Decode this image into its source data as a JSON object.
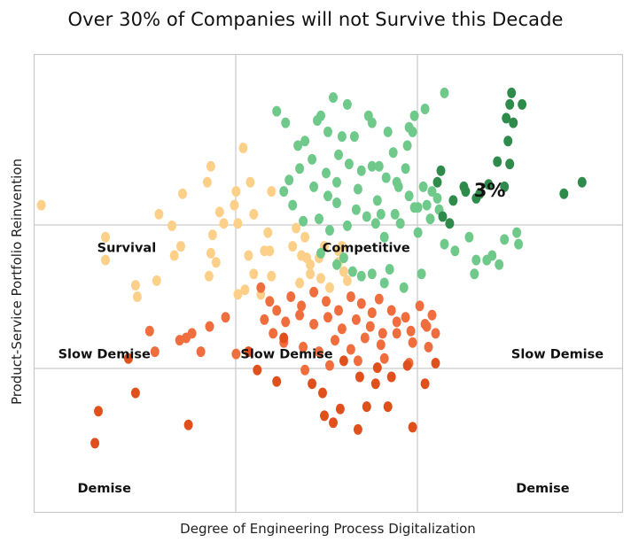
{
  "chart_data": {
    "type": "scatter",
    "title": "Over 30% of Companies will not Survive this Decade",
    "xlabel": "Degree of Engineering Process Digitalization",
    "ylabel": "Product-Service Portfolio Reinvention",
    "xlim": [
      0,
      100
    ],
    "ylim": [
      0,
      100
    ],
    "grid": "quadrant lines only",
    "legend": "none",
    "colors": {
      "light_orange": "#fdd08a",
      "light_green": "#6fc98a",
      "dark_green": "#2e8b4c",
      "red_orange": "#f06e3e",
      "dark_red_orange": "#e0501c"
    },
    "annotations": [
      {
        "text": "Survival",
        "x": 15.8,
        "y": 57.5
      },
      {
        "text": "Competitive",
        "x": 56.5,
        "y": 57.5
      },
      {
        "text": "3%",
        "x": 77.5,
        "y": 70.0
      },
      {
        "text": "Slow Demise",
        "x": 12.0,
        "y": 34.3
      },
      {
        "text": "Slow Demise",
        "x": 43.0,
        "y": 34.3
      },
      {
        "text": "Slow Demise",
        "x": 89.0,
        "y": 34.3
      },
      {
        "text": "Demise",
        "x": 12.0,
        "y": 5.0
      },
      {
        "text": "Demise",
        "x": 86.5,
        "y": 5.0
      }
    ],
    "series": [
      {
        "color": "#fdd08a",
        "x": [
          1.3,
          12.2,
          12.2,
          17.3,
          17.6,
          20.9,
          21.3,
          25.0,
          23.9,
          23.5,
          25.3,
          29.5,
          30.1,
          34.1,
          34.7,
          30.4,
          30.1,
          29.8,
          34.7,
          31.0,
          32.3,
          31.6,
          34.4,
          35.6,
          36.8,
          37.4,
          40.4,
          39.8,
          40.1,
          44.0,
          44.6,
          45.5,
          46.1,
          47.0,
          48.5,
          49.4,
          47.0,
          51.8,
          52.7,
          48.8,
          50.3,
          51.8,
          52.4,
          53.3,
          46.4,
          45.2,
          40.4,
          39.2,
          36.5,
          38.6,
          35.9,
          37.4
        ],
        "y": [
          67.0,
          60.0,
          55.0,
          49.5,
          47.0,
          50.5,
          65.0,
          58.0,
          56.0,
          62.5,
          69.5,
          72.0,
          75.5,
          67.0,
          63.0,
          60.5,
          56.5,
          51.5,
          47.5,
          54.5,
          63.0,
          65.5,
          70.0,
          79.5,
          72.0,
          65.0,
          70.0,
          61.0,
          57.0,
          58.0,
          62.0,
          56.0,
          60.0,
          54.0,
          55.5,
          58.0,
          52.0,
          57.0,
          52.5,
          51.0,
          49.0,
          54.5,
          58.0,
          50.5,
          55.5,
          50.0,
          51.5,
          57.0,
          56.0,
          47.5,
          48.5,
          52.0
        ]
      },
      {
        "color": "#6fc98a",
        "x": [
          41.3,
          44.9,
          48.8,
          50.0,
          52.4,
          54.5,
          56.9,
          58.7,
          61.1,
          63.5,
          64.4,
          64.7,
          63.2,
          59.9,
          57.5,
          55.7,
          53.6,
          51.8,
          49.7,
          47.3,
          45.2,
          43.4,
          42.5,
          44.0,
          47.6,
          51.5,
          55.1,
          58.4,
          61.7,
          63.8,
          66.2,
          66.8,
          68.9,
          67.7,
          64.7,
          61.4,
          58.1,
          54.8,
          51.5,
          48.5,
          45.8,
          50.3,
          53.3,
          56.6,
          59.6,
          62.3,
          65.3,
          67.4,
          69.8,
          71.6,
          74.0,
          75.2,
          77.9,
          80.0,
          82.4,
          82.1,
          79.1,
          77.0,
          74.9,
          60.5,
          57.5,
          54.2,
          51.5,
          48.8,
          52.7,
          55.7,
          59.6,
          62.9,
          65.9,
          50.0,
          59.0,
          65.3,
          68.6,
          69.8,
          66.5,
          63.8,
          60.2,
          57.5,
          53.3,
          50.9,
          48.2,
          46.1,
          42.8,
          62.0
        ],
        "y": [
          87.5,
          80.0,
          86.5,
          83.0,
          82.0,
          82.0,
          86.5,
          75.5,
          78.5,
          80.0,
          83.0,
          86.5,
          75.0,
          73.0,
          75.5,
          74.5,
          76.0,
          78.0,
          74.0,
          77.0,
          75.0,
          72.5,
          70.0,
          67.0,
          71.0,
          72.0,
          70.5,
          68.0,
          72.0,
          69.0,
          71.0,
          67.0,
          66.0,
          70.0,
          66.5,
          65.0,
          63.0,
          66.0,
          67.5,
          64.0,
          63.5,
          61.5,
          62.5,
          64.5,
          60.0,
          63.0,
          61.0,
          64.0,
          58.5,
          57.0,
          60.0,
          55.0,
          56.0,
          59.5,
          58.5,
          61.0,
          54.0,
          55.0,
          52.0,
          53.0,
          52.0,
          52.5,
          54.0,
          56.5,
          55.5,
          51.5,
          50.0,
          49.0,
          52.0,
          69.0,
          65.0,
          66.5,
          68.5,
          91.5,
          88.0,
          84.0,
          83.0,
          85.0,
          89.0,
          90.5,
          85.5,
          81.0,
          85.0,
          71.0
        ]
      },
      {
        "color": "#2e8b4c",
        "x": [
          69.2,
          68.6,
          73.1,
          73.4,
          75.8,
          80.0,
          80.9,
          80.6,
          81.5,
          80.3,
          80.9,
          81.2,
          83.0,
          78.8,
          77.3,
          75.2,
          90.1,
          93.2,
          69.5,
          71.3,
          70.7
        ],
        "y": [
          74.5,
          72.0,
          71.0,
          70.0,
          69.5,
          71.0,
          76.0,
          81.0,
          85.0,
          86.0,
          89.0,
          91.5,
          89.0,
          76.5,
          71.5,
          68.5,
          69.5,
          72.0,
          64.5,
          68.0,
          63.0
        ]
      },
      {
        "color": "#f06e3e",
        "x": [
          38.6,
          40.1,
          41.3,
          43.7,
          45.5,
          47.6,
          49.7,
          51.8,
          53.9,
          55.7,
          57.5,
          58.7,
          60.8,
          63.2,
          65.6,
          67.7,
          68.3,
          66.5,
          64.1,
          61.7,
          59.3,
          57.2,
          54.8,
          52.4,
          50.0,
          47.6,
          45.2,
          42.8,
          40.7,
          39.2,
          42.5,
          45.8,
          48.5,
          51.2,
          53.9,
          56.3,
          59.0,
          61.7,
          64.4,
          66.8,
          55.1,
          50.3,
          46.1,
          59.6,
          63.8,
          67.1,
          34.4,
          29.9,
          24.8,
          26.9,
          28.4,
          19.7,
          20.6,
          25.9,
          32.6
        ],
        "y": [
          49.0,
          46.0,
          44.0,
          47.0,
          45.0,
          48.0,
          46.0,
          44.0,
          47.0,
          45.5,
          43.5,
          46.5,
          44.0,
          42.5,
          45.0,
          43.0,
          39.0,
          41.0,
          39.5,
          41.5,
          39.0,
          40.5,
          42.0,
          40.0,
          42.5,
          41.0,
          43.0,
          41.5,
          39.0,
          42.0,
          37.0,
          36.0,
          35.0,
          37.5,
          35.5,
          38.0,
          36.5,
          39.0,
          37.0,
          40.5,
          33.0,
          32.0,
          31.0,
          33.5,
          32.5,
          36.0,
          34.5,
          40.5,
          37.5,
          39.0,
          35.0,
          39.5,
          35.0,
          38.0,
          42.5
        ]
      },
      {
        "color": "#e0501c",
        "x": [
          10.4,
          11.0,
          17.3,
          16.1,
          26.3,
          41.3,
          38.0,
          42.5,
          47.3,
          49.1,
          52.7,
          55.4,
          58.4,
          60.8,
          63.5,
          66.5,
          68.3,
          50.9,
          60.2,
          64.4,
          49.4,
          52.1,
          56.6,
          58.1,
          36.5,
          55.1
        ],
        "y": [
          15.0,
          22.0,
          26.0,
          33.5,
          19.0,
          28.5,
          31.0,
          38.0,
          28.0,
          26.0,
          33.0,
          29.5,
          31.5,
          29.5,
          32.0,
          28.0,
          32.5,
          19.5,
          23.0,
          18.5,
          21.0,
          22.5,
          23.0,
          28.0,
          35.0,
          18.0
        ]
      }
    ]
  }
}
